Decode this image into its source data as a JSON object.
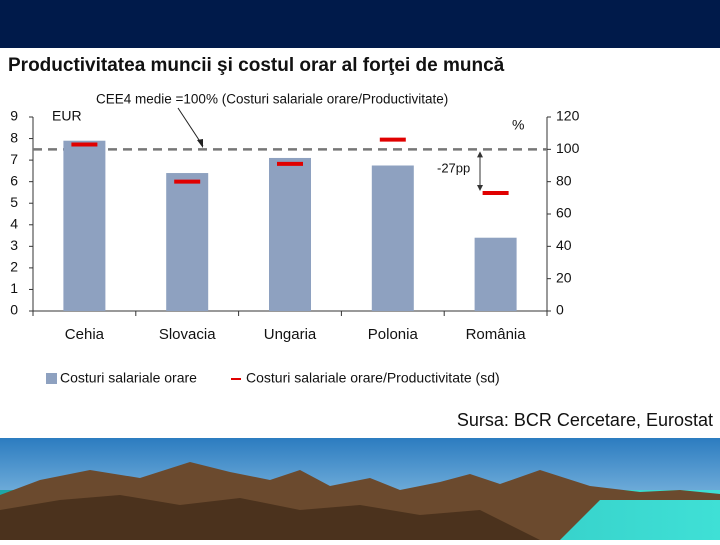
{
  "chart_data": {
    "type": "bar",
    "title": "Productivitatea muncii şi costul orar al forţei de muncă",
    "categories": [
      "Cehia",
      "Slovacia",
      "Ungaria",
      "Polonia",
      "România"
    ],
    "series": [
      {
        "name": "Costuri salariale orare",
        "color": "#8ea1c0",
        "values": [
          7.9,
          6.4,
          7.1,
          6.75,
          3.4
        ]
      },
      {
        "name": "Costuri salariale orare/Productivitate (sd)",
        "color": "#e00000",
        "axis": "y2",
        "marker": "dash",
        "values": [
          103,
          80,
          91,
          106,
          73
        ]
      }
    ],
    "ylim": [
      0,
      9
    ],
    "yticks": [
      0,
      1,
      2,
      3,
      4,
      5,
      6,
      7,
      8,
      9
    ],
    "ylabel": "EUR",
    "y2lim": [
      0,
      120
    ],
    "y2ticks": [
      0,
      20,
      40,
      60,
      80,
      100,
      120
    ],
    "y2label": "%",
    "reference_line": {
      "value": 100,
      "axis": "y2",
      "label": "CEE4 medie =100% (Costuri salariale orare/Productivitate)"
    },
    "gap_annotation": {
      "from": 100,
      "to": 73,
      "axis": "y2",
      "label": "-27pp"
    },
    "source": "Sursa: BCR Cercetare, Eurostat",
    "grid": false
  }
}
